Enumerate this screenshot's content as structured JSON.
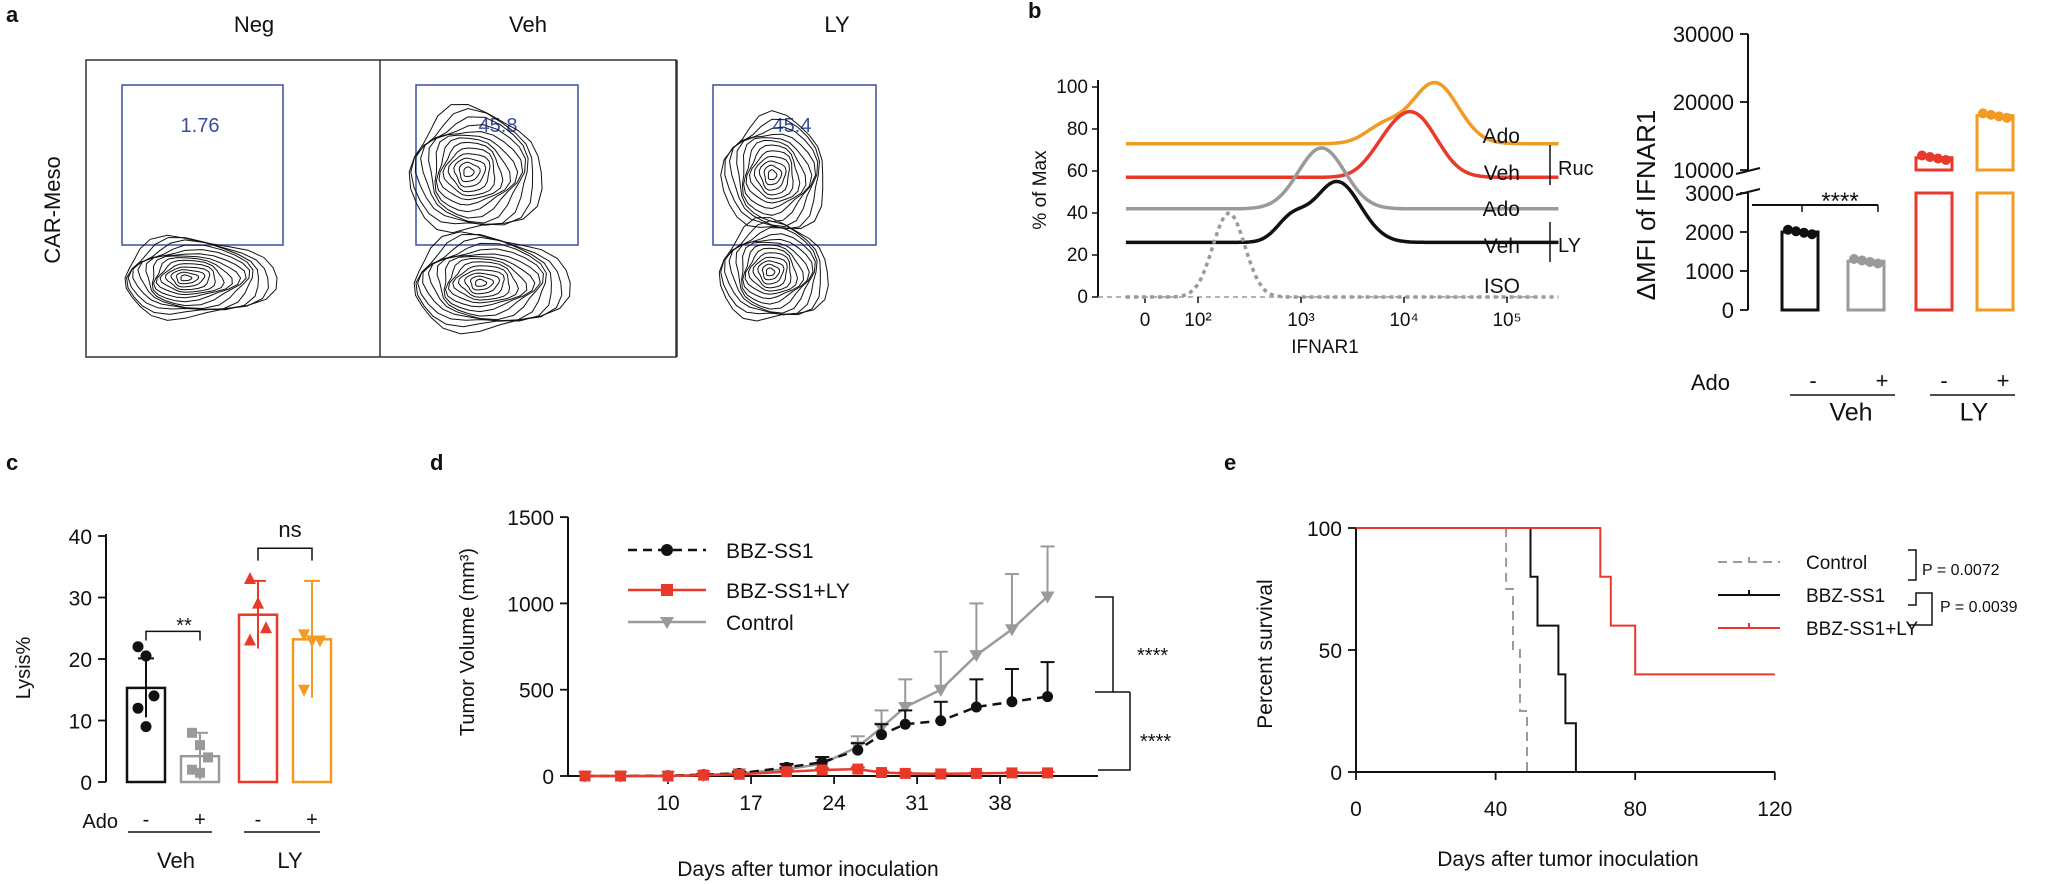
{
  "panel_letters": {
    "a": "a",
    "b": "b",
    "c": "c",
    "d": "d",
    "e": "e"
  },
  "colors": {
    "black": "#111111",
    "gray": "#9a9a9a",
    "red": "#e8392b",
    "orange": "#f39a22",
    "gate": "#3a4ea0"
  },
  "chart_data": [
    {
      "panel": "a",
      "type": "contour-flow",
      "ylabel": "CAR-Meso",
      "columns": [
        {
          "label": "Neg",
          "gate_value": "1.76"
        },
        {
          "label": "Veh",
          "gate_value": "45.8"
        },
        {
          "label": "LY",
          "gate_value": "45.4"
        }
      ]
    },
    {
      "panel": "b-left",
      "type": "histogram-overlay",
      "xlabel": "IFNAR1",
      "ylabel": "% of Max",
      "yticks": [
        "0",
        "20",
        "40",
        "60",
        "80",
        "100"
      ],
      "xticks": [
        "0",
        "10²",
        "10³",
        "10⁴",
        "10⁵"
      ],
      "curve_labels": [
        "Ado",
        "Veh",
        "Ado",
        "Veh",
        "ISO"
      ],
      "group_labels": [
        "Ruc",
        "LY"
      ],
      "series": [
        {
          "name": "Ado (Ruc)",
          "color": "#f39a22",
          "baseline": 73,
          "peak_log": 4.3,
          "peak_value": 102
        },
        {
          "name": "Veh (Ruc)",
          "color": "#e8392b",
          "baseline": 57,
          "peak_log": 4.1,
          "peak_value": 86
        },
        {
          "name": "Ado (LY)",
          "color": "#9a9a9a",
          "baseline": 42,
          "peak_log": 3.2,
          "peak_value": 71
        },
        {
          "name": "Veh (LY)",
          "color": "#111111",
          "baseline": 26,
          "peak_log": 3.35,
          "peak_value": 55
        },
        {
          "name": "ISO",
          "color": "#9a9a9a",
          "baseline": 0,
          "peak_log": 2.3,
          "peak_value": 40
        }
      ]
    },
    {
      "panel": "b-right",
      "type": "bar",
      "ylabel": "ΔMFI of IFNAR1",
      "yticks_lower": [
        "0",
        "1000",
        "2000",
        "3000"
      ],
      "yticks_upper": [
        "10000",
        "20000",
        "30000"
      ],
      "ado_label": "Ado",
      "ado_signs": [
        "-",
        "+",
        "-",
        "+"
      ],
      "groups": [
        "Veh",
        "LY"
      ],
      "significance": "****",
      "bars": [
        {
          "group": "Veh",
          "ado": "-",
          "value": 2000,
          "color": "#111111"
        },
        {
          "group": "Veh",
          "ado": "+",
          "value": 1250,
          "color": "#9a9a9a"
        },
        {
          "group": "LY",
          "ado": "-",
          "value": 11800,
          "color": "#e8392b"
        },
        {
          "group": "LY",
          "ado": "+",
          "value": 18000,
          "color": "#f39a22"
        }
      ]
    },
    {
      "panel": "c",
      "type": "bar",
      "ylabel": "Lysis%",
      "ylim": [
        0,
        40
      ],
      "yticks": [
        "0",
        "10",
        "20",
        "30",
        "40"
      ],
      "ado_label": "Ado",
      "ado_signs": [
        "-",
        "+",
        "-",
        "+"
      ],
      "groups": [
        "Veh",
        "LY"
      ],
      "significance": [
        "**",
        "ns"
      ],
      "bars": [
        {
          "group": "Veh",
          "ado": "-",
          "value": 15.3,
          "sd": 4.8,
          "color": "#111111",
          "points": [
            22,
            20.5,
            14,
            12,
            9
          ]
        },
        {
          "group": "Veh",
          "ado": "+",
          "value": 4.2,
          "sd": 3.8,
          "color": "#9a9a9a",
          "points": [
            8,
            6,
            4,
            2,
            1.5
          ]
        },
        {
          "group": "LY",
          "ado": "-",
          "value": 27.2,
          "sd": 5.5,
          "color": "#e8392b",
          "points": [
            33,
            29,
            25,
            23
          ]
        },
        {
          "group": "LY",
          "ado": "+",
          "value": 23.2,
          "sd": 9.5,
          "color": "#f39a22",
          "points": [
            24,
            23,
            23,
            15
          ]
        }
      ]
    },
    {
      "panel": "d",
      "type": "line",
      "xlabel": "Days after tumor inoculation",
      "ylabel": "Tumor Volume (mm³)",
      "ylim": [
        0,
        1500
      ],
      "yticks": [
        "0",
        "500",
        "1000",
        "1500"
      ],
      "xticks": [
        "10",
        "17",
        "24",
        "31",
        "38"
      ],
      "significance": [
        "****",
        "****"
      ],
      "x": [
        3,
        6,
        10,
        13,
        16,
        20,
        23,
        26,
        28,
        30,
        33,
        36,
        39,
        42
      ],
      "series": [
        {
          "name": "BBZ-SS1",
          "color": "#111111",
          "dash": true,
          "values": [
            0,
            0,
            2,
            8,
            15,
            50,
            80,
            150,
            240,
            300,
            320,
            400,
            430,
            460
          ],
          "err": [
            0,
            0,
            0,
            5,
            10,
            20,
            30,
            40,
            60,
            80,
            110,
            160,
            190,
            200
          ]
        },
        {
          "name": "BBZ-SS1+LY",
          "color": "#e8392b",
          "dash": false,
          "values": [
            0,
            0,
            0,
            5,
            10,
            25,
            35,
            40,
            20,
            15,
            12,
            15,
            18,
            18
          ],
          "err": [
            0,
            0,
            0,
            3,
            5,
            10,
            10,
            10,
            8,
            5,
            5,
            5,
            5,
            5
          ]
        },
        {
          "name": "Control",
          "color": "#9a9a9a",
          "dash": false,
          "values": [
            0,
            0,
            0,
            5,
            15,
            40,
            70,
            170,
            280,
            400,
            500,
            700,
            850,
            1040
          ],
          "err": [
            0,
            0,
            0,
            5,
            10,
            20,
            40,
            60,
            100,
            160,
            220,
            300,
            320,
            290
          ]
        }
      ]
    },
    {
      "panel": "e",
      "type": "survival",
      "xlabel": "Days after tumor inoculation",
      "ylabel": "Percent survival",
      "xlim": [
        0,
        120
      ],
      "ylim": [
        0,
        100
      ],
      "xticks": [
        "0",
        "40",
        "80",
        "120"
      ],
      "yticks": [
        "0",
        "50",
        "100"
      ],
      "pvalues": [
        "P = 0.0072",
        "P = 0.0039"
      ],
      "series": [
        {
          "name": "Control",
          "color": "#9a9a9a",
          "dash": true,
          "steps": [
            [
              0,
              100
            ],
            [
              43,
              100
            ],
            [
              43,
              75
            ],
            [
              45,
              75
            ],
            [
              45,
              50
            ],
            [
              47,
              50
            ],
            [
              47,
              25
            ],
            [
              49,
              25
            ],
            [
              49,
              0
            ]
          ]
        },
        {
          "name": "BBZ-SS1",
          "color": "#111111",
          "dash": false,
          "steps": [
            [
              0,
              100
            ],
            [
              50,
              100
            ],
            [
              50,
              80
            ],
            [
              52,
              80
            ],
            [
              52,
              60
            ],
            [
              58,
              60
            ],
            [
              58,
              40
            ],
            [
              60,
              40
            ],
            [
              60,
              20
            ],
            [
              63,
              20
            ],
            [
              63,
              0
            ],
            [
              66,
              0
            ]
          ]
        },
        {
          "name": "BBZ-SS1+LY",
          "color": "#e8392b",
          "dash": false,
          "steps": [
            [
              0,
              100
            ],
            [
              70,
              100
            ],
            [
              70,
              80
            ],
            [
              73,
              80
            ],
            [
              73,
              60
            ],
            [
              80,
              60
            ],
            [
              80,
              40
            ],
            [
              120,
              40
            ]
          ]
        }
      ]
    }
  ]
}
